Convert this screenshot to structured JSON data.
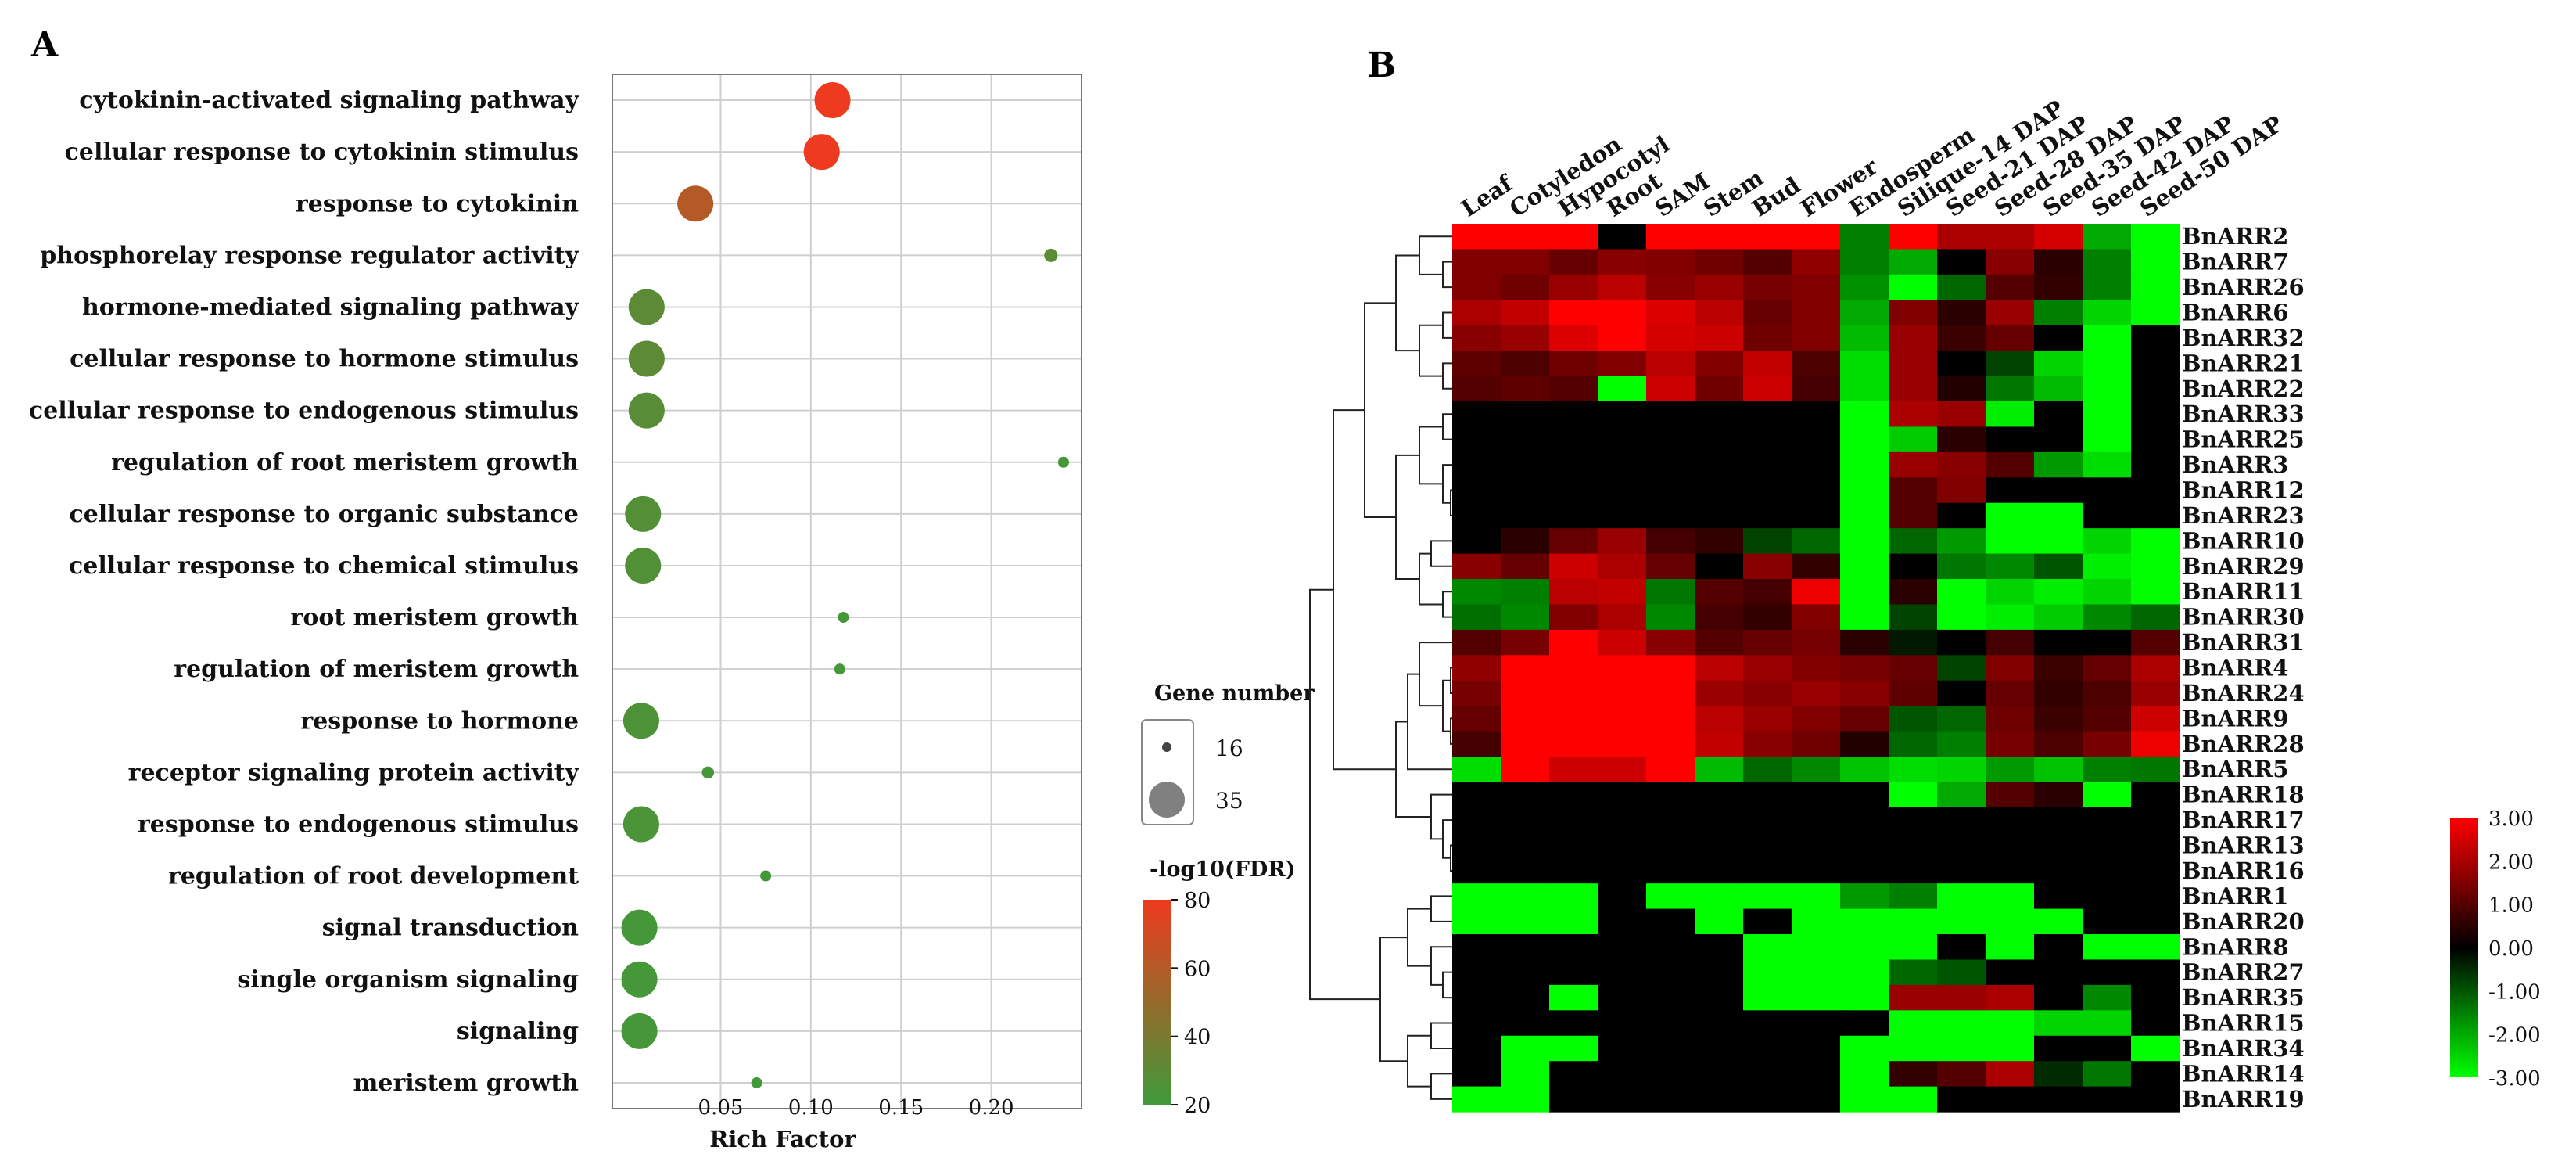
{
  "chart_data": [
    {
      "panel": "A",
      "type": "scatter",
      "xlabel": "Rich Factor",
      "ylabel": "",
      "x_ticks": [
        0.05,
        0.1,
        0.15,
        0.2
      ],
      "xlim": [
        -0.01,
        0.25
      ],
      "grid": true,
      "terms": [
        {
          "term": "cytokinin-activated signaling pathway",
          "rich_factor": 0.112,
          "gene_number": 35,
          "neg_log10_fdr": 80
        },
        {
          "term": "cellular response to cytokinin stimulus",
          "rich_factor": 0.106,
          "gene_number": 35,
          "neg_log10_fdr": 80
        },
        {
          "term": "response to cytokinin",
          "rich_factor": 0.036,
          "gene_number": 35,
          "neg_log10_fdr": 60
        },
        {
          "term": "phosphorelay response regulator activity",
          "rich_factor": 0.233,
          "gene_number": 16,
          "neg_log10_fdr": 30
        },
        {
          "term": "hormone-mediated signaling pathway",
          "rich_factor": 0.009,
          "gene_number": 35,
          "neg_log10_fdr": 30
        },
        {
          "term": "cellular response to hormone stimulus",
          "rich_factor": 0.009,
          "gene_number": 35,
          "neg_log10_fdr": 30
        },
        {
          "term": "cellular response to endogenous stimulus",
          "rich_factor": 0.009,
          "gene_number": 35,
          "neg_log10_fdr": 29
        },
        {
          "term": "regulation of root meristem growth",
          "rich_factor": 0.24,
          "gene_number": 14,
          "neg_log10_fdr": 22
        },
        {
          "term": "cellular response to organic substance",
          "rich_factor": 0.007,
          "gene_number": 35,
          "neg_log10_fdr": 27
        },
        {
          "term": "cellular response to chemical stimulus",
          "rich_factor": 0.007,
          "gene_number": 35,
          "neg_log10_fdr": 26
        },
        {
          "term": "root meristem growth",
          "rich_factor": 0.118,
          "gene_number": 14,
          "neg_log10_fdr": 22
        },
        {
          "term": "regulation of meristem growth",
          "rich_factor": 0.116,
          "gene_number": 14,
          "neg_log10_fdr": 22
        },
        {
          "term": "response to hormone",
          "rich_factor": 0.006,
          "gene_number": 35,
          "neg_log10_fdr": 25
        },
        {
          "term": "receptor signaling protein activity",
          "rich_factor": 0.043,
          "gene_number": 15,
          "neg_log10_fdr": 22
        },
        {
          "term": "response to endogenous stimulus",
          "rich_factor": 0.006,
          "gene_number": 35,
          "neg_log10_fdr": 24
        },
        {
          "term": "regulation of root development",
          "rich_factor": 0.075,
          "gene_number": 14,
          "neg_log10_fdr": 21
        },
        {
          "term": "signal transduction",
          "rich_factor": 0.005,
          "gene_number": 35,
          "neg_log10_fdr": 22
        },
        {
          "term": "single organism signaling",
          "rich_factor": 0.005,
          "gene_number": 35,
          "neg_log10_fdr": 22
        },
        {
          "term": "signaling",
          "rich_factor": 0.005,
          "gene_number": 35,
          "neg_log10_fdr": 22
        },
        {
          "term": "meristem growth",
          "rich_factor": 0.07,
          "gene_number": 14,
          "neg_log10_fdr": 21
        }
      ],
      "size_legend": {
        "title": "Gene number",
        "values": [
          16,
          35
        ]
      },
      "color_legend": {
        "title": "-log10(FDR)",
        "ticks": [
          80,
          60,
          40,
          20
        ],
        "low_color": "#3f9a3a",
        "high_color": "#ee3a1e"
      }
    },
    {
      "panel": "B",
      "type": "heatmap",
      "columns": [
        "Leaf",
        "Cotyledon",
        "Hypocotyl",
        "Root",
        "SAM",
        "Stem",
        "Bud",
        "Flower",
        "Endosperm",
        "Silique-14 DAP",
        "Seed-21 DAP",
        "Seed-28 DAP",
        "Seed-35 DAP",
        "Seed-42 DAP",
        "Seed-50 DAP"
      ],
      "rows": [
        "BnARR2",
        "BnARR7",
        "BnARR26",
        "BnARR6",
        "BnARR32",
        "BnARR21",
        "BnARR22",
        "BnARR33",
        "BnARR25",
        "BnARR3",
        "BnARR12",
        "BnARR23",
        "BnARR10",
        "BnARR29",
        "BnARR11",
        "BnARR30",
        "BnARR31",
        "BnARR4",
        "BnARR24",
        "BnARR9",
        "BnARR28",
        "BnARR5",
        "BnARR18",
        "BnARR17",
        "BnARR13",
        "BnARR16",
        "BnARR1",
        "BnARR20",
        "BnARR8",
        "BnARR27",
        "BnARR35",
        "BnARR15",
        "BnARR34",
        "BnARR14",
        "BnARR19"
      ],
      "values": [
        [
          3,
          3,
          3,
          0,
          3,
          3,
          3,
          3,
          -1.5,
          3,
          2,
          2,
          2.5,
          -2,
          -3
        ],
        [
          1.5,
          1.5,
          1.2,
          1.6,
          1.5,
          1.3,
          1,
          1.7,
          -1.5,
          -2,
          0,
          1.6,
          0.5,
          -1.5,
          -3
        ],
        [
          1.5,
          1.3,
          1.8,
          2.2,
          1.6,
          1.8,
          1.4,
          1.5,
          -1.7,
          -3,
          -1.2,
          1,
          0.6,
          -1.5,
          -3
        ],
        [
          2,
          2.3,
          3,
          3,
          2.6,
          2.2,
          1.2,
          1.5,
          -2,
          1.5,
          0.5,
          1.8,
          -1.5,
          -2.5,
          -3
        ],
        [
          1.6,
          1.8,
          2.6,
          3,
          2.5,
          2.4,
          1.3,
          1.5,
          -2.2,
          1.8,
          0.7,
          1.2,
          0,
          -3,
          0
        ],
        [
          1.1,
          0.9,
          1.3,
          1.5,
          2.2,
          1.5,
          2.3,
          0.9,
          -2.6,
          1.8,
          0,
          -0.8,
          -2.5,
          -3,
          0
        ],
        [
          1,
          1.1,
          1,
          -3,
          2.4,
          1.3,
          2.4,
          0.8,
          -2.6,
          1.8,
          0.4,
          -1.4,
          -2.2,
          -3,
          0
        ],
        [
          0,
          0,
          0,
          0,
          0,
          0,
          0,
          0,
          -3,
          2,
          1.8,
          -2.8,
          0,
          -3,
          0
        ],
        [
          0,
          0,
          0,
          0,
          0,
          0,
          0,
          0,
          -3,
          -2.4,
          0.5,
          0,
          0,
          -3,
          0
        ],
        [
          0,
          0,
          0,
          0,
          0,
          0,
          0,
          0,
          -3,
          1.8,
          1.6,
          1,
          -1.8,
          -2.6,
          0
        ],
        [
          0,
          0,
          0,
          0,
          0,
          0,
          0,
          0,
          -3,
          1,
          1.5,
          0,
          0,
          0,
          0
        ],
        [
          0,
          0,
          0,
          0,
          0,
          0,
          0,
          0,
          -3,
          1,
          0,
          -3,
          -3,
          0,
          0
        ],
        [
          0,
          0.5,
          1.2,
          1.8,
          0.8,
          0.6,
          -0.8,
          -1.2,
          -3,
          -1.2,
          -1.8,
          -3,
          -3,
          -2.5,
          -3
        ],
        [
          1.6,
          1.2,
          2.4,
          2,
          1.2,
          0,
          1.6,
          0.6,
          -3,
          0,
          -1.4,
          -1.6,
          -1,
          -2.8,
          -3
        ],
        [
          -1.6,
          -1.5,
          2.2,
          2.3,
          -1.4,
          1,
          0.8,
          2.8,
          -3,
          0.5,
          -3,
          -2.5,
          -2.8,
          -2.5,
          -3
        ],
        [
          -1.3,
          -1.6,
          1.5,
          2,
          -1.6,
          0.8,
          0.6,
          1.5,
          -3,
          -0.8,
          -3,
          -2.8,
          -2.4,
          -1.6,
          -1.2
        ],
        [
          1,
          1.4,
          3,
          2.4,
          1.6,
          1,
          1.2,
          1.4,
          0.5,
          -0.3,
          0,
          0.8,
          0,
          0,
          1
        ],
        [
          1.7,
          3,
          3,
          3,
          3,
          2.2,
          1.8,
          1.5,
          1.4,
          1.2,
          -0.8,
          1.5,
          0.7,
          1.2,
          2
        ],
        [
          1.4,
          3,
          3,
          3,
          3,
          1.8,
          1.6,
          1.8,
          1.6,
          1.1,
          0,
          1.2,
          0.6,
          0.9,
          1.8
        ],
        [
          1.2,
          3,
          3,
          3,
          3,
          2.2,
          1.8,
          1.5,
          1.2,
          -1,
          -1.2,
          1.3,
          0.7,
          1,
          2.4
        ],
        [
          0.8,
          3,
          3,
          3,
          3,
          2.3,
          1.6,
          1.3,
          0.4,
          -1.2,
          -1.5,
          1.4,
          0.9,
          1.4,
          2.8
        ],
        [
          -2.6,
          3,
          2.4,
          2.4,
          3,
          -2.2,
          -1.2,
          -1.6,
          -2.3,
          -2.6,
          -2.5,
          -1.8,
          -2.3,
          -1.5,
          -1.4
        ],
        [
          0,
          0,
          0,
          0,
          0,
          0,
          0,
          0,
          0,
          -3,
          -2,
          1,
          0.5,
          -3,
          0
        ],
        [
          0,
          0,
          0,
          0,
          0,
          0,
          0,
          0,
          0,
          0,
          0,
          0,
          0,
          0,
          0
        ],
        [
          0,
          0,
          0,
          0,
          0,
          0,
          0,
          0,
          0,
          0,
          0,
          0,
          0,
          0,
          0
        ],
        [
          0,
          0,
          0,
          0,
          0,
          0,
          0,
          0,
          0,
          0,
          0,
          0,
          0,
          0,
          0
        ],
        [
          -3,
          -3,
          -3,
          0,
          -3,
          -3,
          -3,
          -3,
          -1.8,
          -1.5,
          -3,
          -3,
          0,
          0,
          0
        ],
        [
          -3,
          -3,
          -3,
          0,
          0,
          -3,
          0,
          -3,
          -3,
          -3,
          -3,
          -3,
          -3,
          0,
          0
        ],
        [
          0,
          0,
          0,
          0,
          0,
          0,
          -3,
          -3,
          -3,
          -3,
          0,
          -3,
          0,
          -3,
          -3
        ],
        [
          0,
          0,
          0,
          0,
          0,
          0,
          -3,
          -3,
          -3,
          -1.2,
          -1,
          0,
          0,
          0,
          0
        ],
        [
          0,
          0,
          -3,
          0,
          0,
          0,
          -3,
          -3,
          -3,
          1.8,
          1.8,
          2,
          0,
          -1.6,
          0
        ],
        [
          0,
          0,
          0,
          0,
          0,
          0,
          0,
          0,
          0,
          -3,
          -3,
          -3,
          -2.5,
          -2.5,
          0
        ],
        [
          0,
          -3,
          -3,
          0,
          0,
          0,
          0,
          0,
          -3,
          -3,
          -3,
          -3,
          0,
          0,
          -3
        ],
        [
          0,
          -3,
          0,
          0,
          0,
          0,
          0,
          0,
          -3,
          0.6,
          1,
          2,
          -0.5,
          -1.4,
          0
        ],
        [
          -3,
          -3,
          0,
          0,
          0,
          0,
          0,
          0,
          -3,
          -3,
          0,
          0,
          0,
          0,
          0
        ]
      ],
      "color_scale": {
        "min": -3,
        "max": 3,
        "ticks": [
          "3.00",
          "2.00",
          "1.00",
          "0.00",
          "-1.00",
          "-2.00",
          "-3.00"
        ],
        "low_color": "#00ff00",
        "mid_color": "#000000",
        "high_color": "#ff0000"
      }
    }
  ],
  "labels": {
    "panel_a": "A",
    "panel_b": "B"
  }
}
